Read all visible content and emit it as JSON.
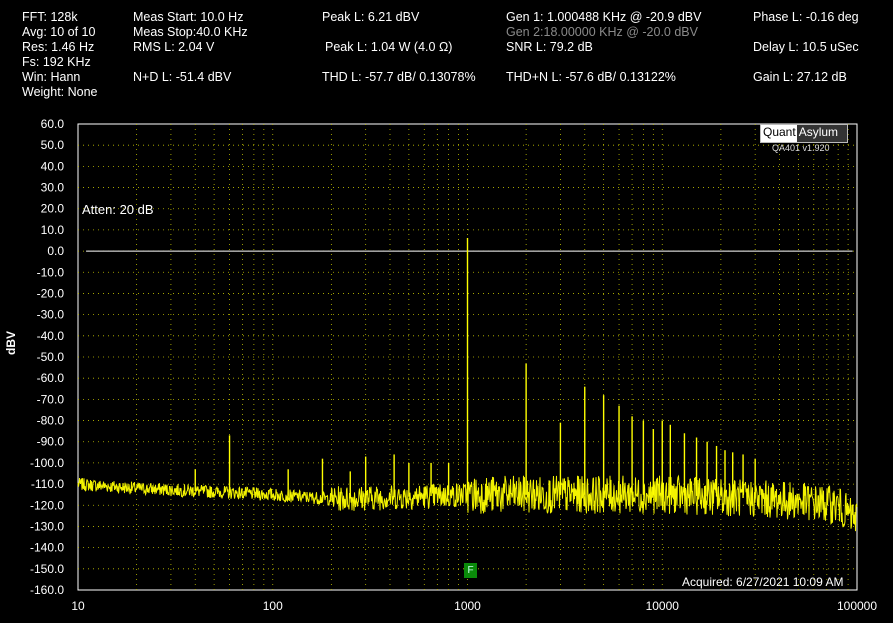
{
  "header": {
    "fft": "FFT:  128k",
    "avg": "Avg:  10 of 10",
    "res": "Res:  1.46 Hz",
    "fs": "Fs:  192 KHz",
    "win": "Win:  Hann",
    "weight": "Weight:  None",
    "meas_start": "Meas Start:  10.0 Hz",
    "meas_stop": "Meas Stop:40.0 KHz",
    "rms": "RMS L:  2.04 V",
    "nd": "N+D L:  -51.4 dBV",
    "peak_l": "Peak L:  6.21 dBV",
    "peak_w": "Peak L:  1.04 W (4.0 Ω)",
    "thd": "THD L:  -57.7 dB/ 0.13078%",
    "gen1": "Gen 1:  1.000488 KHz @ -20.9  dBV",
    "gen2": "Gen 2:18.00000 KHz @ -20.0  dBV",
    "snr": "SNR L:  79.2 dB",
    "thdn": "THD+N L:  -57.6 dB/ 0.13122%",
    "phase": "Phase L:  -0.16 deg",
    "delay": "Delay L:  10.5 uSec",
    "gain": "Gain L:  27.12 dB"
  },
  "logo": {
    "part1": "Quant",
    "part2": "Asylum",
    "version": "QA401 v1.920"
  },
  "atten": "Atten: 20 dB",
  "acquired": "Acquired: 6/27/2021  10:09 AM",
  "marker": "F",
  "colors": {
    "trace": "#ffff00",
    "grid": "#bfbf00",
    "ref": "#ffffff",
    "bg": "#000000"
  },
  "chart_data": {
    "type": "line",
    "ylabel": "dBV",
    "xscale": "log",
    "xlim": [
      10,
      100000
    ],
    "ylim": [
      -160,
      60
    ],
    "x_ticks": [
      "10",
      "100",
      "1000",
      "10000",
      "100000"
    ],
    "y_ticks": [
      "60.0",
      "50.0",
      "40.0",
      "30.0",
      "20.0",
      "10.0",
      "0.0",
      "-10.0",
      "-20.0",
      "-30.0",
      "-40.0",
      "-50.0",
      "-60.0",
      "-70.0",
      "-80.0",
      "-90.0",
      "-100.0",
      "-110.0",
      "-120.0",
      "-130.0",
      "-140.0",
      "-150.0",
      "-160.0"
    ],
    "reference_level": 0,
    "series": [
      {
        "color": "#ffff00",
        "noise_floor": [
          [
            10,
            -110
          ],
          [
            20,
            -112
          ],
          [
            60,
            -114
          ],
          [
            100,
            -115
          ],
          [
            200,
            -117
          ],
          [
            500,
            -116
          ],
          [
            1000,
            -115
          ],
          [
            2000,
            -115
          ],
          [
            5000,
            -115
          ],
          [
            10000,
            -115
          ],
          [
            20000,
            -116
          ],
          [
            50000,
            -118
          ],
          [
            80000,
            -120
          ],
          [
            95000,
            -126
          ]
        ],
        "peaks": [
          [
            40,
            -103
          ],
          [
            60,
            -87
          ],
          [
            120,
            -103
          ],
          [
            180,
            -98
          ],
          [
            250,
            -104
          ],
          [
            300,
            -97
          ],
          [
            420,
            -96
          ],
          [
            500,
            -100
          ],
          [
            650,
            -100
          ],
          [
            800,
            -100
          ],
          [
            1000,
            6.2
          ],
          [
            2000,
            -53
          ],
          [
            3000,
            -81
          ],
          [
            4000,
            -64
          ],
          [
            5000,
            -68
          ],
          [
            6000,
            -73
          ],
          [
            7000,
            -78
          ],
          [
            8000,
            -80
          ],
          [
            9000,
            -84
          ],
          [
            10000,
            -80
          ],
          [
            11000,
            -82
          ],
          [
            13000,
            -86
          ],
          [
            15000,
            -88
          ],
          [
            17000,
            -90
          ],
          [
            19000,
            -92
          ],
          [
            21000,
            -94
          ],
          [
            23000,
            -95
          ],
          [
            26000,
            -96
          ],
          [
            30000,
            -98
          ]
        ]
      }
    ]
  }
}
